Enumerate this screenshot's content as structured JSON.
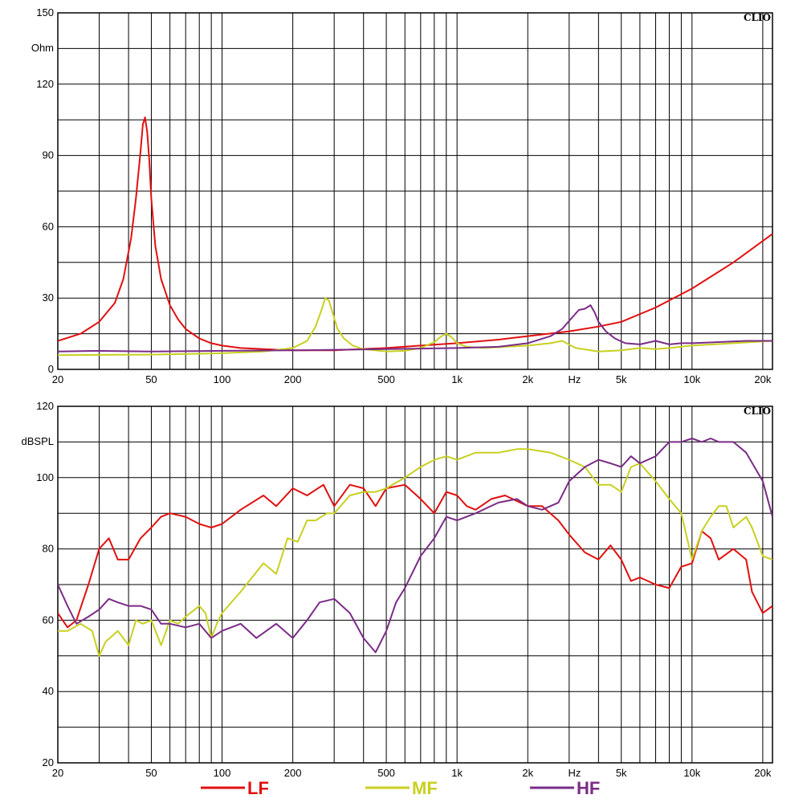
{
  "brand": "CLIO",
  "legend": [
    {
      "label": "LF",
      "color": "#e01010"
    },
    {
      "label": "MF",
      "color": "#c8d020"
    },
    {
      "label": "HF",
      "color": "#7a2c86"
    }
  ],
  "chart_data": [
    {
      "type": "line",
      "xscale": "log",
      "xlim": [
        20,
        22000
      ],
      "ylim": [
        0,
        150
      ],
      "ylabel": "Ohm",
      "xlabel": "Hz",
      "yticks": [
        0,
        30,
        60,
        90,
        120,
        150
      ],
      "xtick_labels": [
        {
          "v": 20,
          "t": "20"
        },
        {
          "v": 50,
          "t": "50"
        },
        {
          "v": 100,
          "t": "100"
        },
        {
          "v": 200,
          "t": "200"
        },
        {
          "v": 500,
          "t": "500"
        },
        {
          "v": 1000,
          "t": "1k"
        },
        {
          "v": 2000,
          "t": "2k"
        },
        {
          "v": 5000,
          "t": "5k"
        },
        {
          "v": 10000,
          "t": "10k"
        },
        {
          "v": 20000,
          "t": "20k"
        }
      ],
      "grid": true,
      "series": [
        {
          "name": "LF",
          "color": "#e01010",
          "x": [
            20,
            25,
            30,
            35,
            38,
            41,
            43,
            45,
            46,
            47,
            48,
            49,
            50,
            52,
            55,
            60,
            65,
            70,
            80,
            90,
            100,
            120,
            150,
            200,
            300,
            500,
            700,
            1000,
            1500,
            2000,
            3000,
            4000,
            5000,
            7000,
            10000,
            15000,
            22000
          ],
          "y": [
            12,
            15,
            20,
            28,
            38,
            55,
            72,
            92,
            103,
            106,
            100,
            88,
            72,
            52,
            38,
            27,
            21,
            17,
            13,
            11,
            10,
            9,
            8.5,
            8,
            8,
            9,
            10,
            11,
            12.5,
            14,
            16,
            18,
            20,
            26,
            34,
            45,
            57
          ]
        },
        {
          "name": "MF",
          "color": "#c8d020",
          "x": [
            20,
            50,
            100,
            150,
            200,
            230,
            250,
            265,
            275,
            285,
            295,
            310,
            330,
            360,
            400,
            500,
            600,
            700,
            800,
            860,
            900,
            950,
            1000,
            1100,
            1300,
            1600,
            2000,
            2500,
            2800,
            3200,
            4000,
            5000,
            6000,
            7000,
            8000,
            10000,
            15000,
            22000
          ],
          "y": [
            6,
            6.2,
            6.8,
            7.5,
            9,
            12,
            18,
            25,
            30,
            29,
            24,
            17,
            13,
            10,
            8.5,
            7.5,
            7.8,
            9,
            11.5,
            14,
            15,
            13.5,
            11,
            9.5,
            9,
            9.5,
            10,
            11,
            12,
            9,
            7.5,
            8,
            9,
            8.5,
            9,
            10,
            11,
            12
          ]
        },
        {
          "name": "HF",
          "color": "#7a2c86",
          "x": [
            20,
            30,
            50,
            100,
            200,
            500,
            1000,
            1500,
            2000,
            2500,
            2800,
            3100,
            3300,
            3500,
            3700,
            3850,
            4000,
            4300,
            4700,
            5200,
            6000,
            7000,
            8000,
            9000,
            10000,
            13000,
            17000,
            22000
          ],
          "y": [
            7.5,
            7.8,
            7.5,
            7.8,
            8,
            8.5,
            9,
            9.5,
            11,
            14,
            17,
            22,
            25,
            25.5,
            27,
            24,
            20,
            16,
            13,
            11,
            10.5,
            12,
            10.5,
            11,
            11,
            11.5,
            12,
            12
          ]
        }
      ]
    },
    {
      "type": "line",
      "xscale": "log",
      "xlim": [
        20,
        22000
      ],
      "ylim": [
        20,
        120
      ],
      "ylabel": "dBSPL",
      "xlabel": "Hz",
      "yticks": [
        20,
        40,
        60,
        80,
        100,
        120
      ],
      "xtick_labels": [
        {
          "v": 20,
          "t": "20"
        },
        {
          "v": 50,
          "t": "50"
        },
        {
          "v": 100,
          "t": "100"
        },
        {
          "v": 200,
          "t": "200"
        },
        {
          "v": 500,
          "t": "500"
        },
        {
          "v": 1000,
          "t": "1k"
        },
        {
          "v": 2000,
          "t": "2k"
        },
        {
          "v": 5000,
          "t": "5k"
        },
        {
          "v": 10000,
          "t": "10k"
        },
        {
          "v": 20000,
          "t": "20k"
        }
      ],
      "grid": true,
      "series": [
        {
          "name": "LF",
          "color": "#e01010",
          "x": [
            20,
            22,
            24,
            27,
            30,
            33,
            36,
            40,
            45,
            50,
            55,
            60,
            70,
            80,
            90,
            100,
            120,
            150,
            170,
            200,
            230,
            270,
            300,
            350,
            400,
            450,
            500,
            600,
            700,
            800,
            900,
            1000,
            1100,
            1200,
            1400,
            1600,
            2000,
            2300,
            2700,
            3000,
            3500,
            4000,
            4500,
            5000,
            5500,
            6000,
            7000,
            8000,
            9000,
            10000,
            11000,
            12000,
            13000,
            15000,
            17000,
            18000,
            20000,
            22000
          ],
          "y": [
            62,
            58,
            60,
            70,
            80,
            83,
            77,
            77,
            83,
            86,
            89,
            90,
            89,
            87,
            86,
            87,
            91,
            95,
            92,
            97,
            95,
            98,
            92,
            98,
            97,
            92,
            97,
            98,
            94,
            90,
            96,
            95,
            92,
            91,
            94,
            95,
            92,
            92,
            88,
            84,
            79,
            77,
            81,
            77,
            71,
            72,
            70,
            69,
            75,
            76,
            85,
            83,
            77,
            80,
            77,
            68,
            62,
            64
          ]
        },
        {
          "name": "MF",
          "color": "#c8d020",
          "x": [
            20,
            22,
            25,
            28,
            30,
            32,
            36,
            40,
            43,
            46,
            50,
            55,
            60,
            65,
            70,
            80,
            85,
            90,
            95,
            100,
            120,
            150,
            170,
            190,
            210,
            230,
            250,
            280,
            300,
            350,
            400,
            450,
            500,
            600,
            700,
            800,
            900,
            1000,
            1200,
            1500,
            1800,
            2000,
            2500,
            3000,
            3500,
            4000,
            4500,
            5000,
            5500,
            6000,
            7000,
            8000,
            9000,
            10000,
            11000,
            12000,
            13000,
            14000,
            15000,
            17000,
            18000,
            20000,
            22000
          ],
          "y": [
            57,
            57,
            59,
            57,
            50,
            54,
            57,
            53,
            60,
            59,
            60,
            53,
            60,
            59,
            61,
            64,
            62,
            55,
            59,
            62,
            68,
            76,
            73,
            83,
            82,
            88,
            88,
            90,
            90,
            95,
            96,
            96,
            97,
            100,
            103,
            105,
            106,
            105,
            107,
            107,
            108,
            108,
            107,
            105,
            103,
            98,
            98,
            96,
            103,
            104,
            99,
            94,
            90,
            77,
            85,
            89,
            92,
            92,
            86,
            89,
            86,
            78,
            77
          ]
        },
        {
          "name": "HF",
          "color": "#7a2c86",
          "x": [
            20,
            22,
            24,
            27,
            30,
            33,
            36,
            40,
            45,
            50,
            55,
            60,
            70,
            80,
            90,
            100,
            120,
            140,
            170,
            200,
            230,
            260,
            300,
            350,
            400,
            450,
            500,
            550,
            600,
            700,
            800,
            900,
            1000,
            1200,
            1500,
            1800,
            2000,
            2300,
            2700,
            3000,
            3500,
            4000,
            4500,
            5000,
            5500,
            6000,
            7000,
            8000,
            9000,
            10000,
            11000,
            12000,
            13000,
            14000,
            15000,
            17000,
            20000,
            22000
          ],
          "y": [
            70,
            64,
            59,
            61,
            63,
            66,
            65,
            64,
            64,
            63,
            59,
            59,
            58,
            59,
            55,
            57,
            59,
            55,
            59,
            55,
            60,
            65,
            66,
            62,
            55,
            51,
            57,
            65,
            69,
            78,
            83,
            89,
            88,
            90,
            93,
            94,
            92,
            91,
            93,
            99,
            103,
            105,
            104,
            103,
            106,
            104,
            106,
            110,
            110,
            111,
            110,
            111,
            110,
            110,
            110,
            107,
            99,
            89
          ]
        }
      ]
    }
  ]
}
